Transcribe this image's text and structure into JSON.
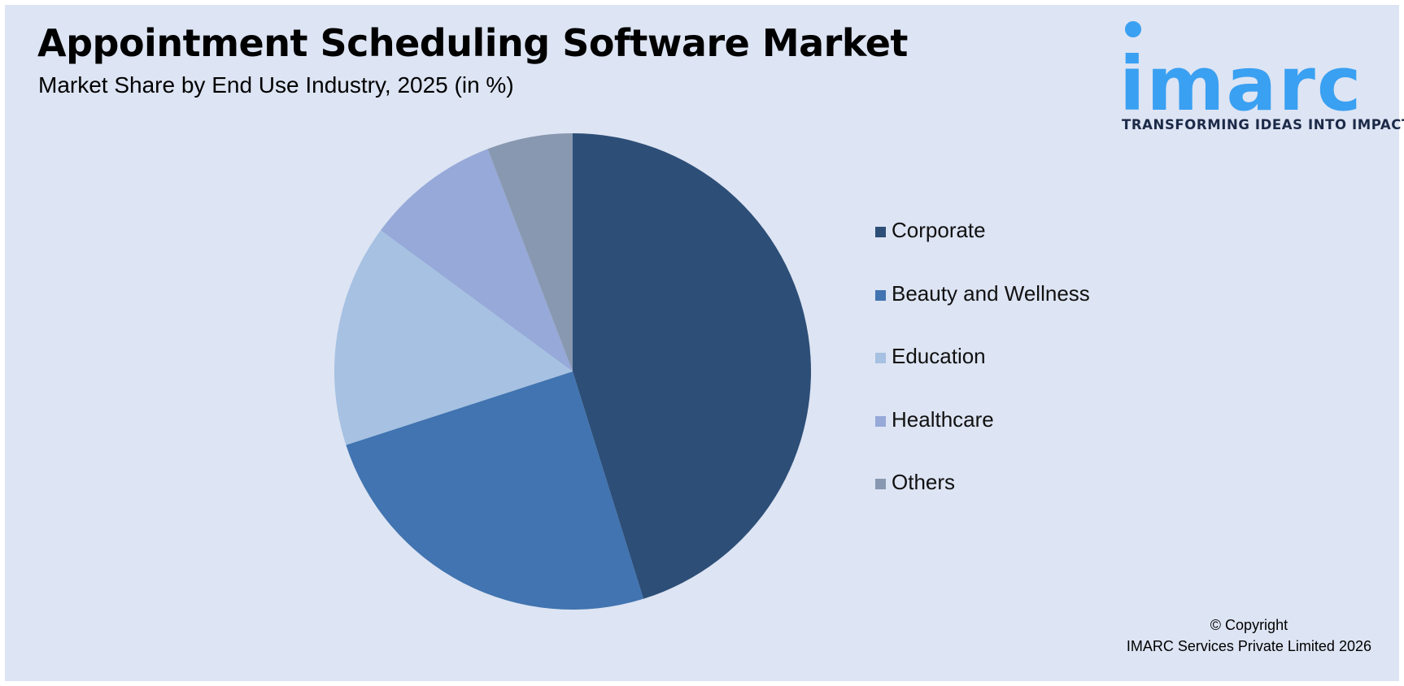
{
  "header": {
    "title": "Appointment Scheduling Software Market",
    "subtitle": "Market Share by End Use Industry, 2025 (in %)"
  },
  "logo": {
    "wordmark": "imarc",
    "tagline": "TRANSFORMING IDEAS INTO IMPACT"
  },
  "footer": {
    "copyright_line1": "© Copyright",
    "copyright_line2": "IMARC Services Private Limited 2026"
  },
  "chart_data": {
    "type": "pie",
    "title": "Appointment Scheduling Software Market",
    "subtitle": "Market Share by End Use Industry, 2025 (in %)",
    "start_angle": "12 o'clock",
    "direction": "clockwise",
    "legend_position": "right",
    "slices": [
      {
        "label": "Corporate",
        "value": 45.2,
        "color": "#2d4e77"
      },
      {
        "label": "Beauty and Wellness",
        "value": 24.8,
        "color": "#4174b0"
      },
      {
        "label": "Education",
        "value": 15.1,
        "color": "#a6c1e2"
      },
      {
        "label": "Healthcare",
        "value": 9.1,
        "color": "#96a9d8"
      },
      {
        "label": "Others",
        "value": 5.8,
        "color": "#8898b0"
      }
    ]
  }
}
